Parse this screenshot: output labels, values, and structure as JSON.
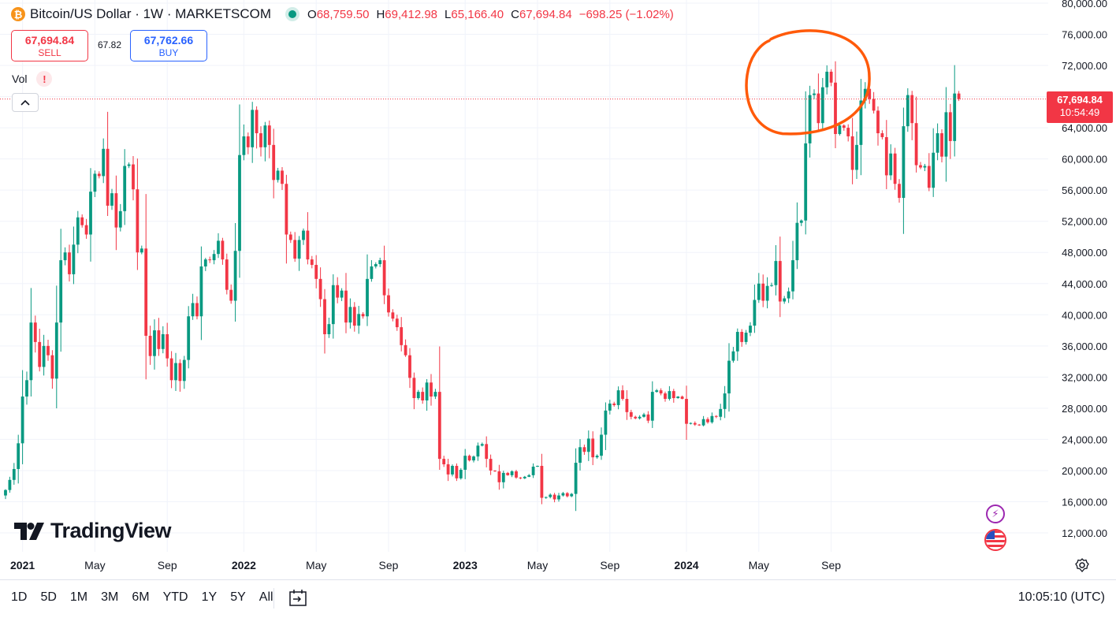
{
  "header": {
    "symbol_icon": "bitcoin-icon",
    "title": "Bitcoin/US Dollar · 1W · MARKETSCOM",
    "ohlc": [
      {
        "key": "O",
        "value": "68,759.50"
      },
      {
        "key": "H",
        "value": "69,412.98"
      },
      {
        "key": "L",
        "value": "65,166.40"
      },
      {
        "key": "C",
        "value": "67,694.84"
      }
    ],
    "change": "−698.25 (−1.02%)"
  },
  "trade": {
    "sell_price": "67,694.84",
    "sell_label": "SELL",
    "spread": "67.82",
    "buy_price": "67,762.66",
    "buy_label": "BUY"
  },
  "indicator": {
    "name": "Vol",
    "warning": "!"
  },
  "logo": "TradingView",
  "last_price": {
    "value": "67,694.84",
    "countdown": "10:54:49"
  },
  "bottom": {
    "ranges": [
      "1D",
      "5D",
      "1M",
      "3M",
      "6M",
      "YTD",
      "1Y",
      "5Y",
      "All"
    ],
    "time": "10:05:10 (UTC)"
  },
  "colors": {
    "up": "#089981",
    "down": "#f23645",
    "grid": "#f0f3fa",
    "annotation": "#ff5a0a"
  },
  "chart_data": {
    "type": "candlestick",
    "title": "Bitcoin/US Dollar · 1W · MARKETSCOM",
    "interval": "1W",
    "ylim": [
      10500,
      80000
    ],
    "y_ticks": [
      "80,000.00",
      "76,000.00",
      "72,000.00",
      "68,000.00",
      "64,000.00",
      "60,000.00",
      "56,000.00",
      "52,000.00",
      "48,000.00",
      "44,000.00",
      "40,000.00",
      "36,000.00",
      "32,000.00",
      "28,000.00",
      "24,000.00",
      "20,000.00",
      "16,000.00",
      "12,000.00"
    ],
    "y_tick_values": [
      80000,
      76000,
      72000,
      68000,
      64000,
      60000,
      56000,
      52000,
      48000,
      44000,
      40000,
      36000,
      32000,
      28000,
      24000,
      20000,
      16000,
      12000
    ],
    "x_ticks": [
      {
        "label": "2021",
        "week": 4,
        "bold": true
      },
      {
        "label": "May",
        "week": 21,
        "bold": false
      },
      {
        "label": "Sep",
        "week": 38,
        "bold": false
      },
      {
        "label": "2022",
        "week": 56,
        "bold": true
      },
      {
        "label": "May",
        "week": 73,
        "bold": false
      },
      {
        "label": "Sep",
        "week": 90,
        "bold": false
      },
      {
        "label": "2023",
        "week": 108,
        "bold": true
      },
      {
        "label": "May",
        "week": 125,
        "bold": false
      },
      {
        "label": "Sep",
        "week": 142,
        "bold": false
      },
      {
        "label": "2024",
        "week": 160,
        "bold": true
      },
      {
        "label": "May",
        "week": 177,
        "bold": false
      },
      {
        "label": "Sep",
        "week": 194,
        "bold": false
      }
    ],
    "last_price": 67694.84,
    "closes": [
      17500,
      18800,
      20200,
      23500,
      29500,
      31600,
      39000,
      36500,
      33300,
      36000,
      34800,
      31800,
      39000,
      47000,
      48000,
      45200,
      49000,
      52500,
      51500,
      50300,
      55800,
      58100,
      57800,
      61300,
      54000,
      55600,
      51200,
      53300,
      59100,
      59300,
      56100,
      48000,
      48500,
      37300,
      34700,
      38000,
      35600,
      37500,
      34400,
      31600,
      33800,
      31500,
      34200,
      39800,
      41500,
      39800,
      46200,
      47100,
      47000,
      47800,
      49500,
      47100,
      43200,
      41800,
      48200,
      60500,
      62900,
      61500,
      66300,
      63300,
      61500,
      64300,
      61800,
      57300,
      58500,
      56800,
      50300,
      49600,
      47200,
      49600,
      50800,
      47100,
      46400,
      44600,
      42000,
      37500,
      38800,
      43800,
      42200,
      43100,
      39000,
      41000,
      38600,
      40100,
      39800,
      44600,
      46200,
      46500,
      47000,
      42500,
      40300,
      39500,
      38400,
      36100,
      34800,
      31900,
      29300,
      30100,
      29000,
      31300,
      29500,
      30100,
      21500,
      20800,
      19500,
      20600,
      19000,
      20100,
      21900,
      21300,
      21800,
      23200,
      23400,
      21500,
      20000,
      19900,
      18500,
      19700,
      19400,
      19900,
      19100,
      19000,
      19200,
      19400,
      20500,
      20600,
      16500,
      16600,
      16900,
      16300,
      16800,
      17100,
      16700,
      17000,
      21000,
      23000,
      22400,
      24100,
      21700,
      21900,
      24600,
      27700,
      28600,
      28400,
      30300,
      29200,
      27500,
      26900,
      26700,
      26900,
      27200,
      26400,
      30100,
      30300,
      29900,
      29200,
      30200,
      29300,
      29500,
      29200,
      26000,
      26100,
      25900,
      25800,
      26600,
      26200,
      27000,
      26900,
      27900,
      29900,
      34100,
      35300,
      37800,
      36500,
      37700,
      38600,
      41900,
      44000,
      41800,
      43700,
      43800,
      46900,
      41700,
      42100,
      43000,
      47000,
      51800,
      52100,
      62000,
      68200,
      68400,
      64600,
      69200,
      71200,
      69800,
      63200,
      64300,
      64000,
      62900,
      58600,
      61800,
      67500,
      69000,
      67700,
      66200,
      63300,
      62800,
      57900,
      60700,
      56800,
      55000,
      64200,
      68200,
      64600,
      59200,
      58900,
      59100,
      56300,
      60800,
      63300,
      60300,
      66000,
      62300,
      68400,
      67694.84
    ],
    "annotation": {
      "shape": "circle",
      "week_center": 190,
      "price_center": 68500
    }
  }
}
